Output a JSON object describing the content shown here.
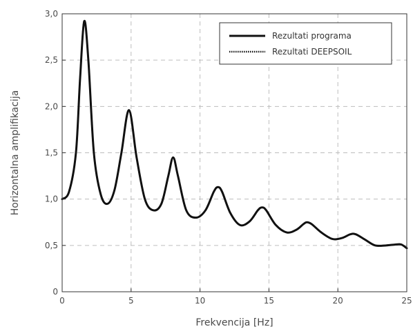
{
  "chart_data": {
    "type": "line",
    "title": "",
    "xlabel": "Frekvencija [Hz]",
    "ylabel": "Horizontalna amplifikacija",
    "xlim": [
      0,
      25
    ],
    "ylim": [
      0,
      3
    ],
    "xticks": [
      0,
      5,
      10,
      15,
      20,
      25
    ],
    "xtick_labels": [
      "0",
      "5",
      "10",
      "15",
      "20",
      "25"
    ],
    "yticks": [
      0,
      0.5,
      1,
      1.5,
      2,
      2.5,
      3
    ],
    "ytick_labels": [
      "0",
      "0,5",
      "1,0",
      "1,5",
      "2,0",
      "2,5",
      "3,0"
    ],
    "grid": true,
    "legend_position": "top-right",
    "series": [
      {
        "name": "Rezultati programa",
        "style": "solid",
        "x": [
          0,
          0.5,
          1.0,
          1.3,
          1.6,
          1.9,
          2.3,
          2.8,
          3.3,
          3.8,
          4.3,
          4.85,
          5.4,
          6.0,
          6.6,
          7.2,
          7.7,
          8.05,
          8.4,
          9.0,
          9.7,
          10.4,
          11.0,
          11.3,
          11.6,
          12.2,
          12.9,
          13.6,
          14.2,
          14.5,
          14.8,
          15.5,
          16.3,
          17.0,
          17.5,
          17.75,
          18.1,
          18.8,
          19.6,
          20.3,
          20.9,
          21.3,
          22.0,
          22.7,
          23.5,
          24.2,
          24.6,
          25.0
        ],
        "y": [
          1.0,
          1.08,
          1.5,
          2.3,
          2.92,
          2.5,
          1.5,
          1.05,
          0.95,
          1.1,
          1.5,
          1.96,
          1.45,
          1.0,
          0.88,
          0.95,
          1.25,
          1.45,
          1.25,
          0.88,
          0.8,
          0.88,
          1.08,
          1.13,
          1.08,
          0.85,
          0.72,
          0.76,
          0.88,
          0.91,
          0.88,
          0.72,
          0.64,
          0.67,
          0.73,
          0.75,
          0.73,
          0.64,
          0.57,
          0.58,
          0.62,
          0.62,
          0.56,
          0.5,
          0.5,
          0.51,
          0.51,
          0.47
        ]
      },
      {
        "name": "Rezultati DEEPSOIL",
        "style": "dotted",
        "x": [
          0,
          0.5,
          1.0,
          1.3,
          1.6,
          1.9,
          2.3,
          2.8,
          3.3,
          3.8,
          4.3,
          4.85,
          5.4,
          6.0,
          6.6,
          7.2,
          7.7,
          8.05,
          8.4,
          9.0,
          9.7,
          10.4,
          11.0,
          11.3,
          11.6,
          12.2,
          12.9,
          13.6,
          14.2,
          14.5,
          14.8,
          15.5,
          16.3,
          17.0,
          17.5,
          17.75,
          18.1,
          18.8,
          19.6,
          20.3,
          20.9,
          21.3,
          22.0,
          22.7,
          23.5,
          24.2,
          24.6,
          25.0
        ],
        "y": [
          1.0,
          1.08,
          1.5,
          2.3,
          2.92,
          2.5,
          1.5,
          1.05,
          0.95,
          1.1,
          1.5,
          1.96,
          1.45,
          1.0,
          0.88,
          0.95,
          1.25,
          1.45,
          1.25,
          0.88,
          0.8,
          0.88,
          1.08,
          1.13,
          1.08,
          0.85,
          0.72,
          0.76,
          0.88,
          0.91,
          0.88,
          0.72,
          0.64,
          0.67,
          0.73,
          0.75,
          0.73,
          0.64,
          0.57,
          0.58,
          0.62,
          0.62,
          0.56,
          0.5,
          0.5,
          0.51,
          0.51,
          0.47
        ]
      }
    ],
    "colors": {
      "line": "#111111",
      "grid": "#bdbdbd",
      "axis": "#333333"
    }
  }
}
